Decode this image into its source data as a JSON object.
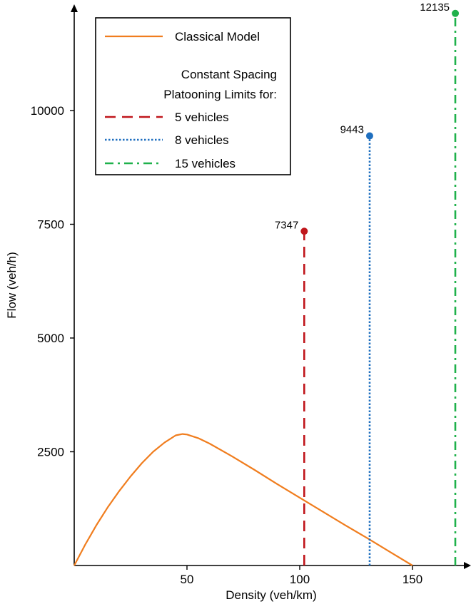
{
  "chart_data": {
    "type": "line",
    "xlabel": "Density (veh/km)",
    "ylabel": "Flow (veh/h)",
    "xlim": [
      0,
      172
    ],
    "ylim": [
      0,
      12500
    ],
    "xticks": [
      50,
      100,
      150
    ],
    "yticks": [
      2500,
      5000,
      7500,
      10000
    ],
    "grid": false,
    "legend_position": "top-left",
    "legend_heading": [
      "Constant Spacing",
      "Platooning Limits for:"
    ],
    "series": [
      {
        "name": "Classical Model",
        "color": "#f07d1e",
        "style": "solid",
        "x": [
          0,
          5,
          10,
          15,
          20,
          25,
          30,
          35,
          40,
          45,
          48,
          50,
          55,
          60,
          70,
          80,
          90,
          100,
          110,
          120,
          130,
          140,
          150
        ],
        "y": [
          0,
          470,
          900,
          1290,
          1640,
          1960,
          2250,
          2500,
          2700,
          2860,
          2890,
          2880,
          2800,
          2680,
          2400,
          2100,
          1790,
          1490,
          1190,
          890,
          600,
          300,
          0
        ]
      },
      {
        "name": "5 vehicles",
        "color": "#c0161c",
        "style": "dashed",
        "x": [
          102,
          102
        ],
        "y": [
          0,
          7347
        ],
        "point_label": "7347"
      },
      {
        "name": "8 vehicles",
        "color": "#1f6fbf",
        "style": "dotted",
        "x": [
          131,
          131
        ],
        "y": [
          0,
          9443
        ],
        "point_label": "9443"
      },
      {
        "name": "15 vehicles",
        "color": "#1fb14b",
        "style": "dashdot",
        "x": [
          169,
          169
        ],
        "y": [
          0,
          12135
        ],
        "point_label": "12135"
      }
    ]
  }
}
